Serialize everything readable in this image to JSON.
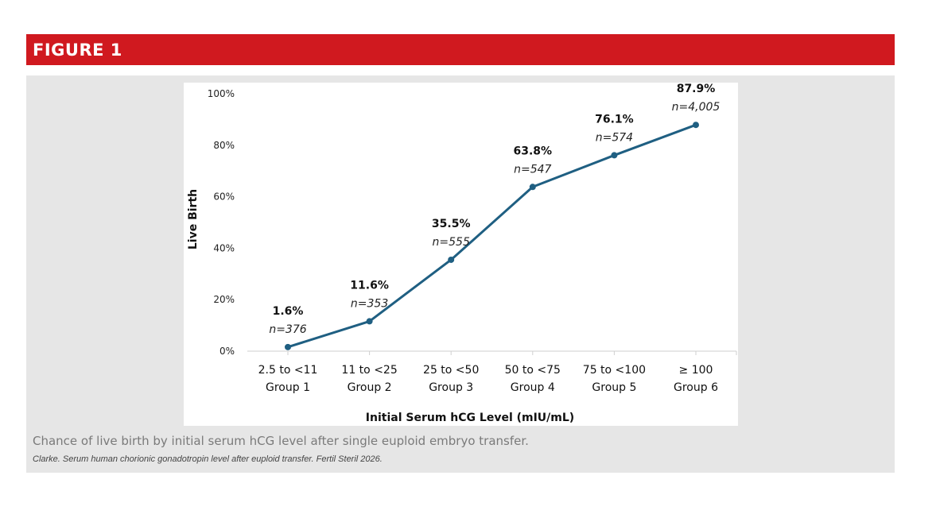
{
  "figure_title": "FIGURE 1",
  "caption": "Chance of live birth by initial serum hCG level after single euploid embryo transfer.",
  "citation": "Clarke. Serum  human chorionic gonadotropin  level after euploid  transfer. Fertil Steril  2026.",
  "colors": {
    "banner": "#d0191f",
    "panel": "#e6e6e6",
    "series": "#1f5f82"
  },
  "chart_data": {
    "type": "line",
    "title": "",
    "xlabel": "Initial Serum hCG Level (mIU/mL)",
    "ylabel": "Live Birth",
    "ylim": [
      0,
      100
    ],
    "yticks": [
      "0%",
      "20%",
      "40%",
      "60%",
      "80%",
      "100%"
    ],
    "grid": false,
    "categories": [
      {
        "range": "2.5 to <11",
        "group": "Group 1"
      },
      {
        "range": "11 to <25",
        "group": "Group 2"
      },
      {
        "range": "25 to <50",
        "group": "Group 3"
      },
      {
        "range": "50 to <75",
        "group": "Group 4"
      },
      {
        "range": "75 to <100",
        "group": "Group 5"
      },
      {
        "range": "≥ 100",
        "group": "Group 6"
      }
    ],
    "series": [
      {
        "values": [
          1.6,
          11.6,
          35.5,
          63.8,
          76.1,
          87.9
        ],
        "value_labels": [
          "1.6%",
          "11.6%",
          "35.5%",
          "63.8%",
          "76.1%",
          "87.9%"
        ],
        "n_labels": [
          "n=376",
          "n=353",
          "n=555",
          "n=547",
          "n=574",
          "n=4,005"
        ]
      }
    ]
  }
}
